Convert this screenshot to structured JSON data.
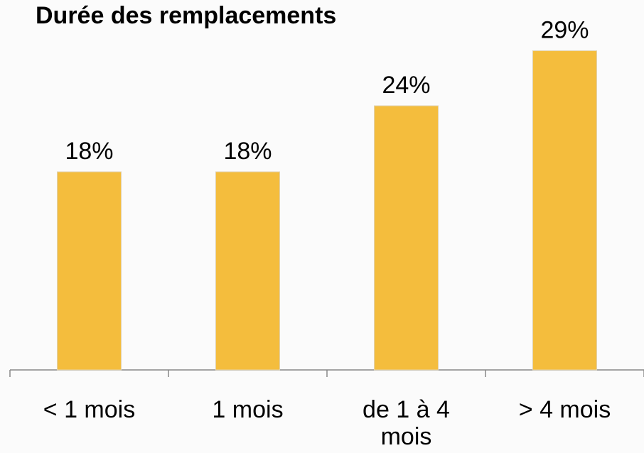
{
  "chart_data": {
    "type": "bar",
    "title": "Durée des remplacements",
    "categories": [
      "< 1 mois",
      "1 mois",
      "de 1 à 4 mois",
      "> 4 mois"
    ],
    "values": [
      18,
      18,
      24,
      29
    ],
    "value_labels": [
      "18%",
      "18%",
      "24%",
      "29%"
    ],
    "color": "#f4bd3d"
  }
}
